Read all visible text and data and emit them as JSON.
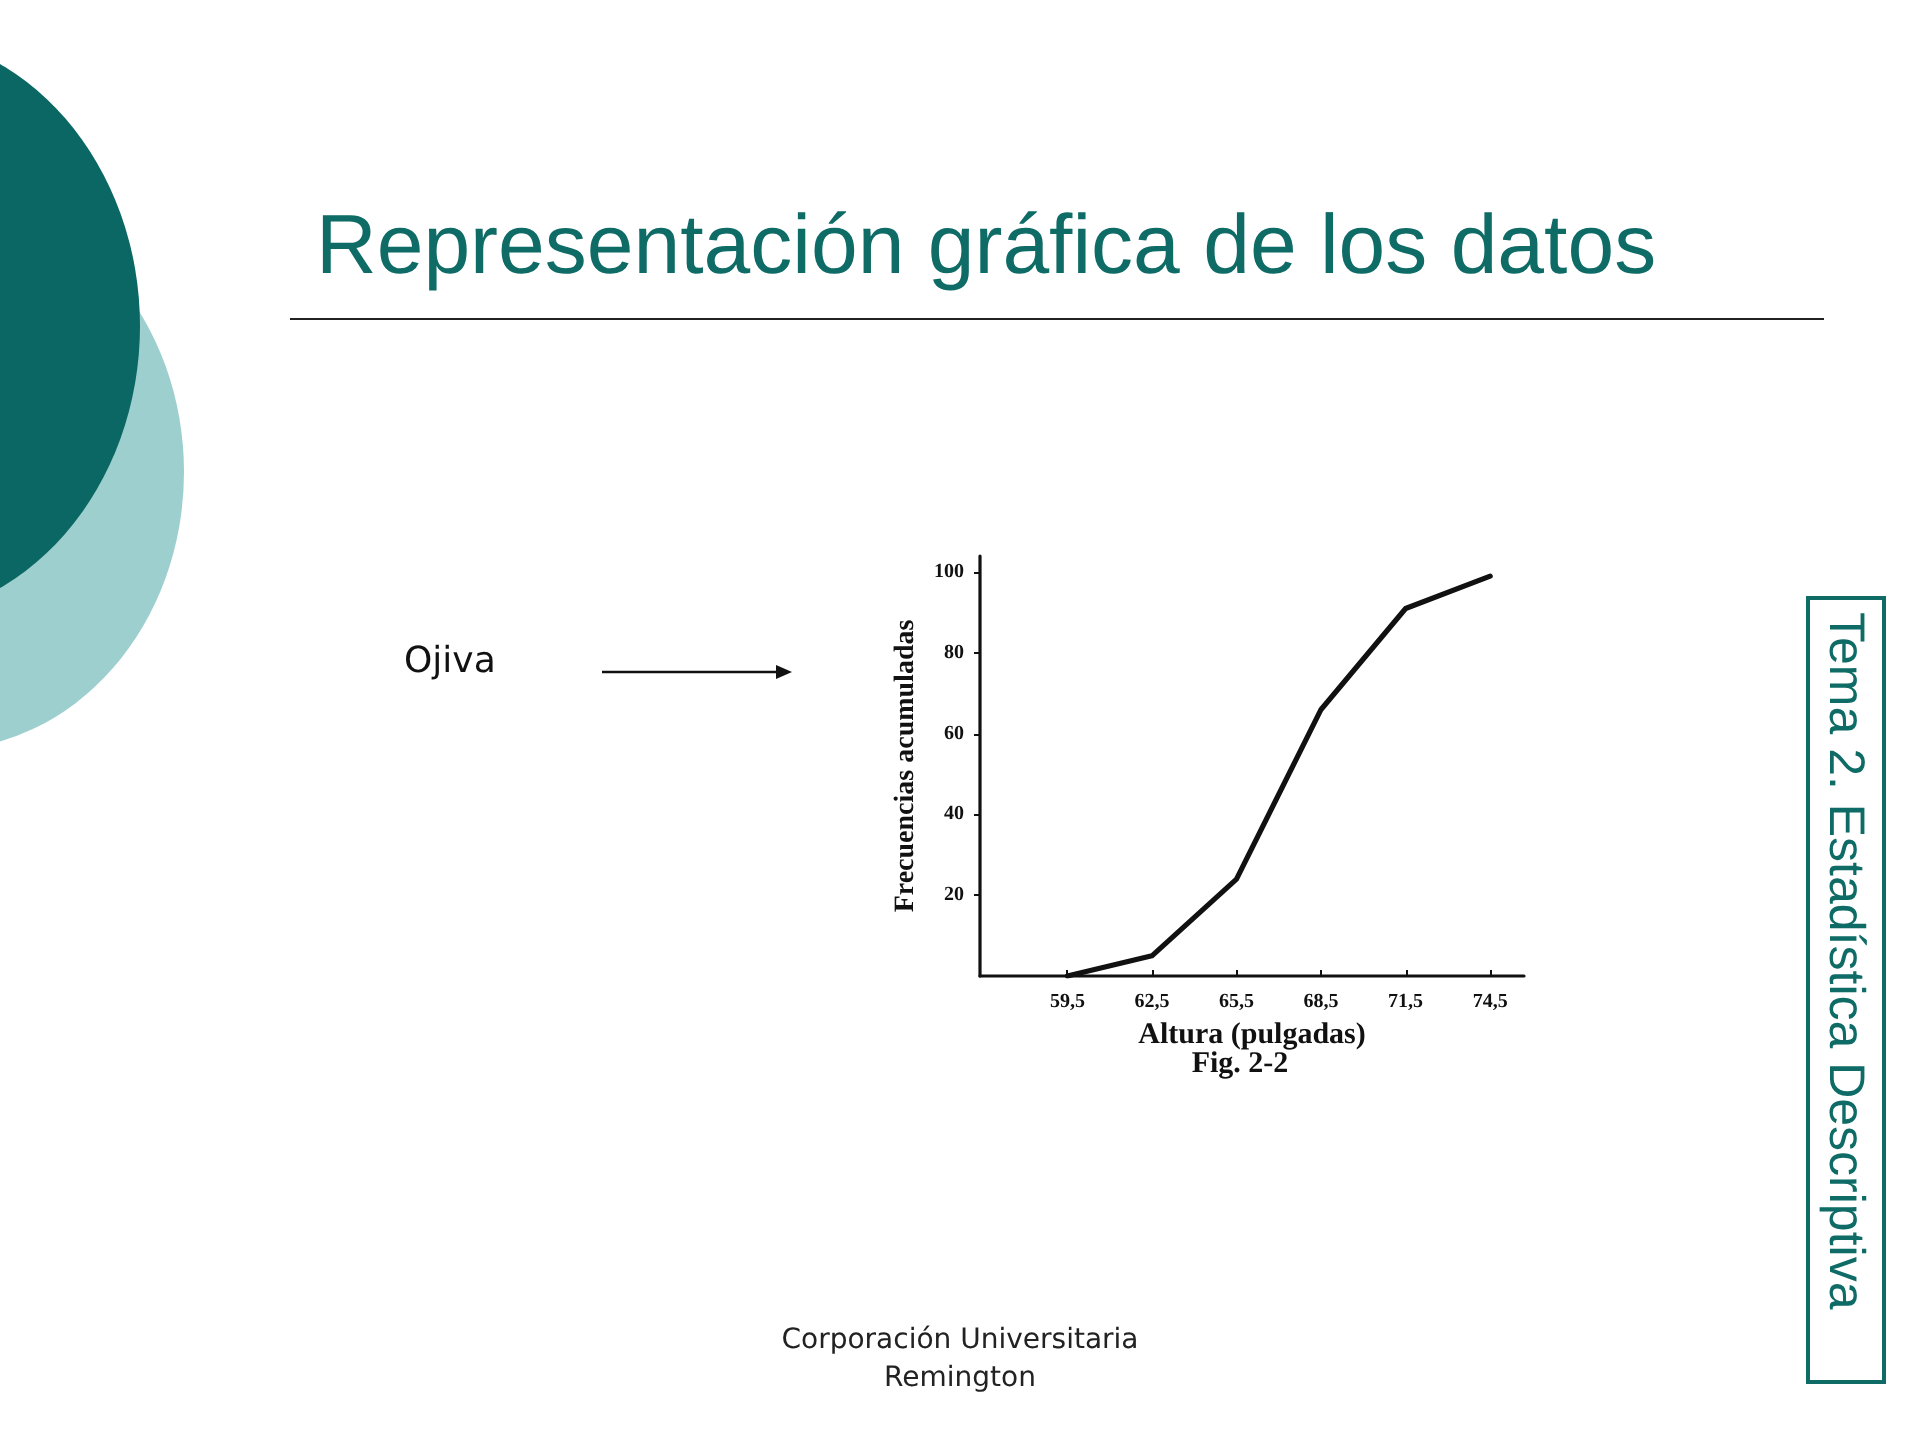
{
  "chart_data": {
    "type": "line",
    "title": "Representación gráfica de los datos",
    "xlabel": "Altura (pulgadas)",
    "ylabel": "Frecuencias acumuladas",
    "annotations": [
      "Fig. 2-2",
      "Ojiva",
      "Tema 2. Estadística Descriptiva",
      "Corporación Universitaria Remington"
    ],
    "x": [
      59.5,
      62.5,
      65.5,
      68.5,
      71.5,
      74.5
    ],
    "series": [
      {
        "color": "#111111",
        "values": [
          0,
          5,
          24,
          66,
          91,
          99
        ]
      }
    ],
    "xlim": [
      56.4,
      75.7
    ],
    "xticks": [
      {
        "value": 59.5,
        "label": "59,5"
      },
      {
        "value": 62.5,
        "label": "62,5"
      },
      {
        "value": 65.5,
        "label": "65,5"
      },
      {
        "value": 68.5,
        "label": "68,5"
      },
      {
        "value": 71.5,
        "label": "71,5"
      },
      {
        "value": 74.5,
        "label": "74,5"
      }
    ],
    "ylim": [
      0,
      104
    ],
    "yticks": [
      20,
      40,
      60,
      80,
      100
    ],
    "marker": "none",
    "line_style": "solid"
  }
}
